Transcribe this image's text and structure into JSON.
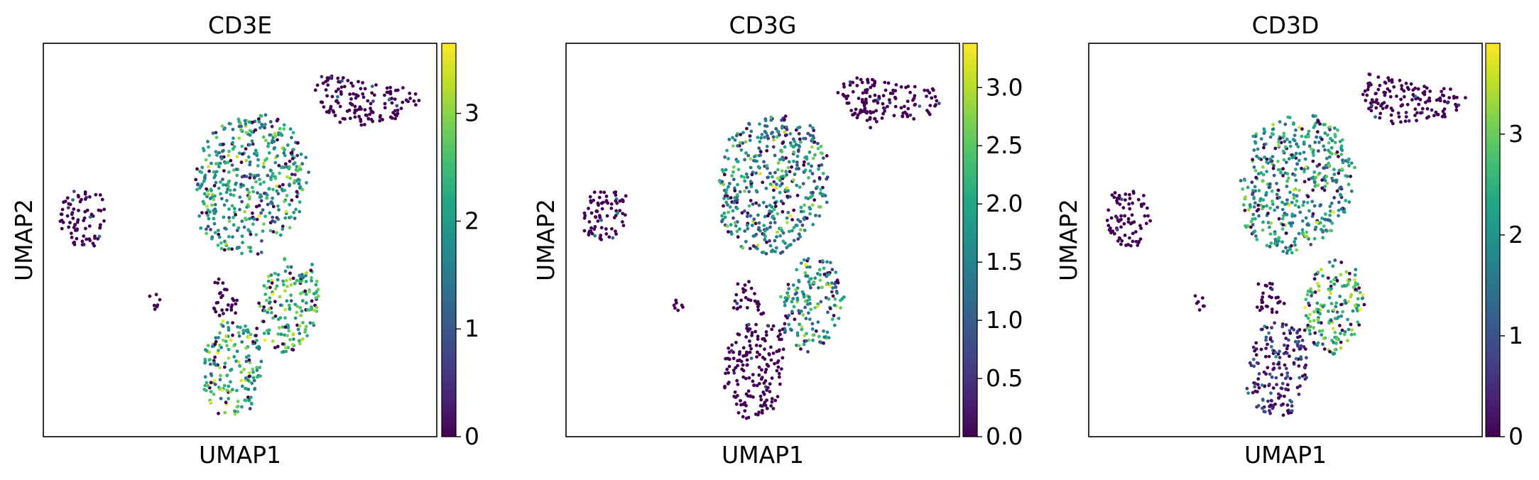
{
  "chart_data": [
    {
      "type": "scatter",
      "title": "CD3E",
      "xlabel": "UMAP1",
      "ylabel": "UMAP2",
      "colormap": "viridis",
      "colorbar": {
        "ticks": [
          "0",
          "1",
          "2",
          "3"
        ],
        "values": [
          0,
          1,
          2,
          3
        ],
        "range": [
          0,
          3.65
        ]
      },
      "regions": [
        {
          "name": "top-right cluster",
          "mean_expression": 0.1
        },
        {
          "name": "left cluster",
          "mean_expression": 0.05
        },
        {
          "name": "central large cluster",
          "mean_expression": 2.0
        },
        {
          "name": "lower right cluster",
          "mean_expression": 2.4
        },
        {
          "name": "bottom cluster",
          "mean_expression": 2.2
        },
        {
          "name": "small satellite clusters",
          "mean_expression": 0.1
        }
      ]
    },
    {
      "type": "scatter",
      "title": "CD3G",
      "xlabel": "UMAP1",
      "ylabel": "UMAP2",
      "colormap": "viridis",
      "colorbar": {
        "ticks": [
          "0.0",
          "0.5",
          "1.0",
          "1.5",
          "2.0",
          "2.5",
          "3.0"
        ],
        "values": [
          0,
          0.5,
          1.0,
          1.5,
          2.0,
          2.5,
          3.0
        ],
        "range": [
          0,
          3.38
        ]
      },
      "regions": [
        {
          "name": "top-right cluster",
          "mean_expression": 0.1
        },
        {
          "name": "left cluster",
          "mean_expression": 0.05
        },
        {
          "name": "central large cluster",
          "mean_expression": 1.5
        },
        {
          "name": "lower right cluster",
          "mean_expression": 1.8
        },
        {
          "name": "bottom cluster",
          "mean_expression": 0.3
        },
        {
          "name": "small satellite clusters",
          "mean_expression": 0.1
        }
      ]
    },
    {
      "type": "scatter",
      "title": "CD3D",
      "xlabel": "UMAP1",
      "ylabel": "UMAP2",
      "colormap": "viridis",
      "colorbar": {
        "ticks": [
          "0",
          "1",
          "2",
          "3"
        ],
        "values": [
          0,
          1,
          2,
          3
        ],
        "range": [
          0,
          3.9
        ]
      },
      "regions": [
        {
          "name": "top-right cluster",
          "mean_expression": 0.1
        },
        {
          "name": "left cluster",
          "mean_expression": 0.05
        },
        {
          "name": "central large cluster",
          "mean_expression": 2.1
        },
        {
          "name": "lower right cluster",
          "mean_expression": 2.6
        },
        {
          "name": "bottom cluster",
          "mean_expression": 0.5
        },
        {
          "name": "small satellite clusters",
          "mean_expression": 0.1
        }
      ]
    }
  ]
}
